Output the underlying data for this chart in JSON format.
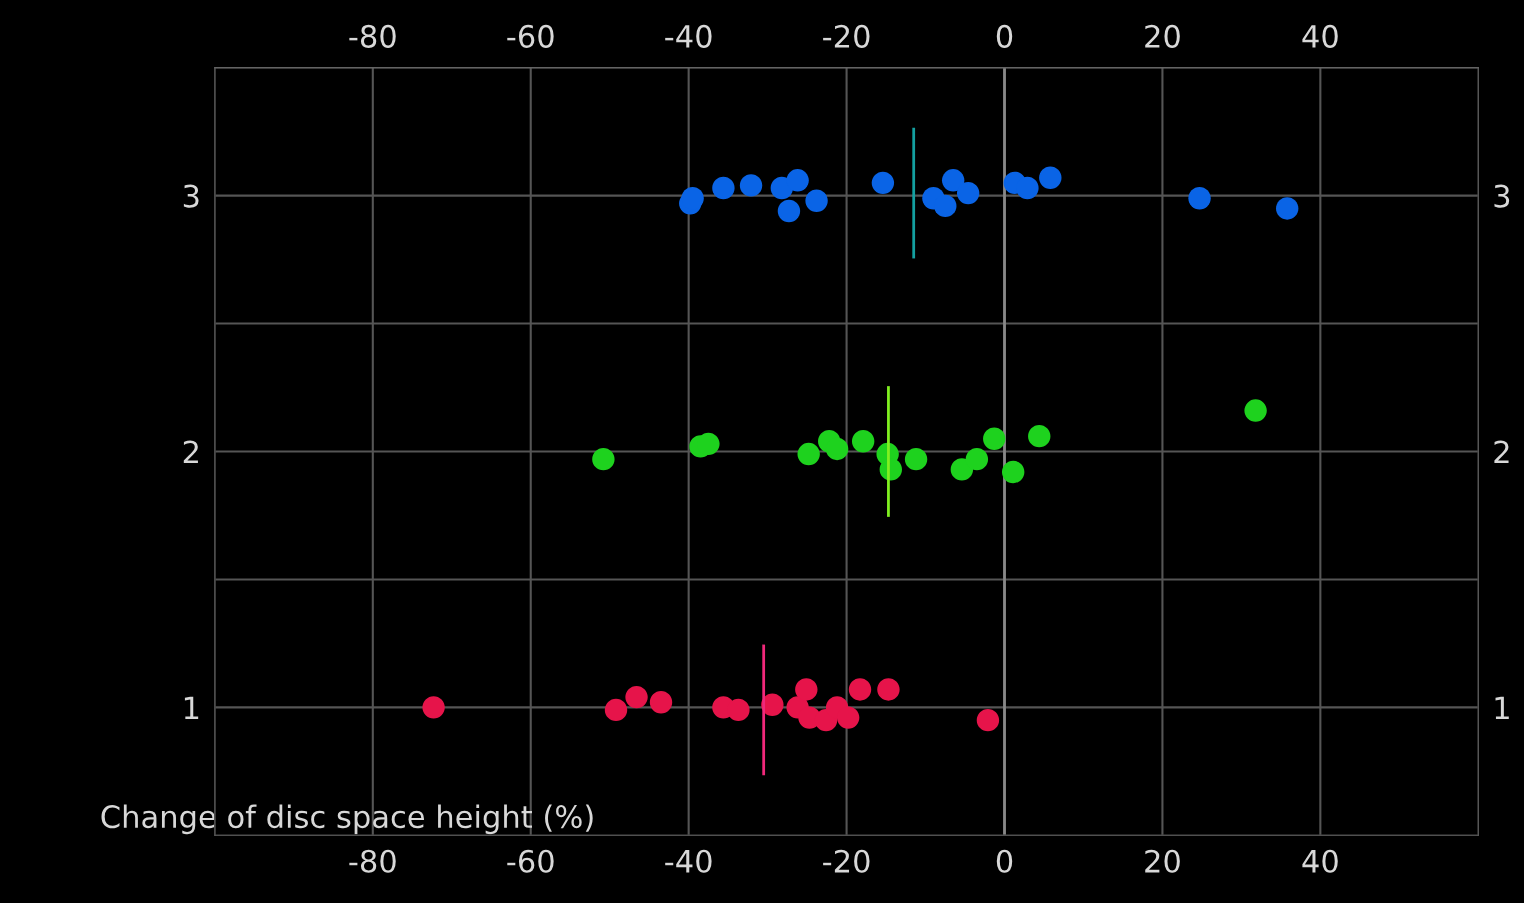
{
  "chart_data": {
    "type": "scatter",
    "xlabel": "Change of disc space height (%)",
    "xlim": [
      -100,
      60
    ],
    "xticks": [
      -80,
      -60,
      -40,
      -20,
      0,
      20,
      40
    ],
    "x2lim": [
      -100,
      60
    ],
    "x2ticks": [
      -80,
      -60,
      -40,
      -20,
      0,
      20,
      40
    ],
    "ylim": [
      0.5,
      3.5
    ],
    "yticks": [
      1,
      {
        "value": 1.5,
        "label": null
      },
      2,
      {
        "value": 2.5,
        "label": null
      },
      3
    ],
    "y2lim": [
      0.5,
      3.5
    ],
    "y2ticks": [
      1,
      2,
      3
    ],
    "grid": true,
    "series": [
      {
        "marker": "circle",
        "color": "#0a64e6",
        "x": [
          -39.8,
          -39.5,
          -35.6,
          -32.1,
          -28.2,
          -26.2,
          -27.3,
          -23.8,
          -15.4,
          -9.0,
          -7.5,
          -6.5,
          -4.6,
          1.3,
          2.9,
          5.8,
          24.7,
          35.8
        ],
        "values": [
          2.97,
          2.99,
          3.03,
          3.04,
          3.03,
          3.06,
          2.94,
          2.98,
          3.05,
          2.99,
          2.96,
          3.06,
          3.01,
          3.05,
          3.03,
          3.07,
          2.99,
          2.95
        ]
      },
      {
        "marker": "circle",
        "color": "#1ed21e",
        "x": [
          -50.8,
          -38.5,
          -37.5,
          -24.8,
          -22.2,
          -21.2,
          -17.9,
          -14.8,
          -14.4,
          -11.2,
          -5.4,
          -3.5,
          -1.3,
          1.1,
          4.4,
          31.8
        ],
        "values": [
          1.97,
          2.02,
          2.03,
          1.99,
          2.04,
          2.01,
          2.04,
          1.99,
          1.93,
          1.97,
          1.93,
          1.97,
          2.05,
          1.92,
          2.06,
          2.16
        ]
      },
      {
        "marker": "circle",
        "color": "#e6144a",
        "x": [
          -72.3,
          -49.2,
          -46.6,
          -43.5,
          -35.6,
          -33.7,
          -29.4,
          -26.2,
          -25.1,
          -24.7,
          -22.6,
          -21.2,
          -19.8,
          -18.3,
          -14.7,
          -2.1
        ],
        "values": [
          1.0,
          0.99,
          1.04,
          1.02,
          1.0,
          0.99,
          1.01,
          1.0,
          1.07,
          0.96,
          0.95,
          1.0,
          0.96,
          1.07,
          1.07,
          0.95
        ]
      },
      {
        "type": "line",
        "color": "#14a0a0",
        "x": [
          -11.5,
          -11.5
        ],
        "values": [
          2.76,
          3.26
        ]
      },
      {
        "type": "line",
        "color": "#80f020",
        "x": [
          -14.7,
          -14.7
        ],
        "values": [
          1.75,
          2.25
        ]
      },
      {
        "type": "line",
        "color": "#f0287a",
        "x": [
          -30.5,
          -30.5
        ],
        "values": [
          0.74,
          1.24
        ]
      }
    ]
  }
}
